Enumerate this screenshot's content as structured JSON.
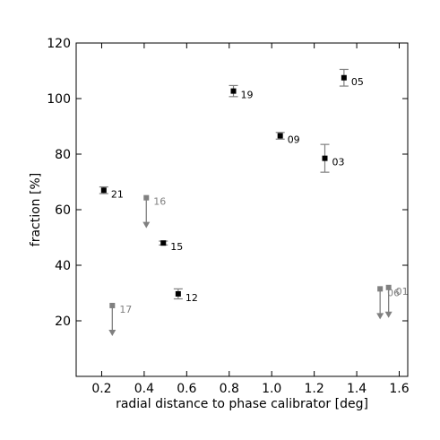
{
  "chart_data": {
    "type": "scatter",
    "xlabel": "radial distance to phase calibrator [deg]",
    "ylabel": "fraction [%]",
    "xlim": [
      0.08,
      1.64
    ],
    "ylim": [
      0,
      120
    ],
    "x_ticks": [
      0.2,
      0.4,
      0.6,
      0.8,
      1.0,
      1.2,
      1.4,
      1.6
    ],
    "y_ticks": [
      20,
      40,
      60,
      80,
      100,
      120
    ],
    "x_tick_labels": [
      "0.2",
      "0.4",
      "0.6",
      "0.8",
      "1.0",
      "1.2",
      "1.4",
      "1.6"
    ],
    "y_tick_labels": [
      "20",
      "40",
      "60",
      "80",
      "100",
      "120"
    ],
    "grid": false,
    "colors": {
      "measurement": "#000000",
      "upper_limit": "#808080"
    },
    "points": [
      {
        "label": "21",
        "x": 0.21,
        "y": 67.0,
        "err": 1.2,
        "kind": "measurement"
      },
      {
        "label": "15",
        "x": 0.49,
        "y": 48.0,
        "err": 0.7,
        "kind": "measurement"
      },
      {
        "label": "12",
        "x": 0.56,
        "y": 29.7,
        "err": 1.8,
        "kind": "measurement"
      },
      {
        "label": "19",
        "x": 0.82,
        "y": 102.7,
        "err": 2.0,
        "kind": "measurement"
      },
      {
        "label": "09",
        "x": 1.04,
        "y": 86.6,
        "err": 1.2,
        "kind": "measurement"
      },
      {
        "label": "03",
        "x": 1.25,
        "y": 78.5,
        "err": 5.0,
        "kind": "measurement"
      },
      {
        "label": "05",
        "x": 1.34,
        "y": 107.5,
        "err": 3.0,
        "kind": "measurement"
      },
      {
        "label": "16",
        "x": 0.41,
        "y": 64.3,
        "kind": "upper_limit"
      },
      {
        "label": "17",
        "x": 0.25,
        "y": 25.5,
        "kind": "upper_limit"
      },
      {
        "label": "06",
        "x": 1.51,
        "y": 31.5,
        "kind": "upper_limit"
      },
      {
        "label": "01",
        "x": 1.55,
        "y": 32.0,
        "kind": "upper_limit"
      }
    ]
  }
}
